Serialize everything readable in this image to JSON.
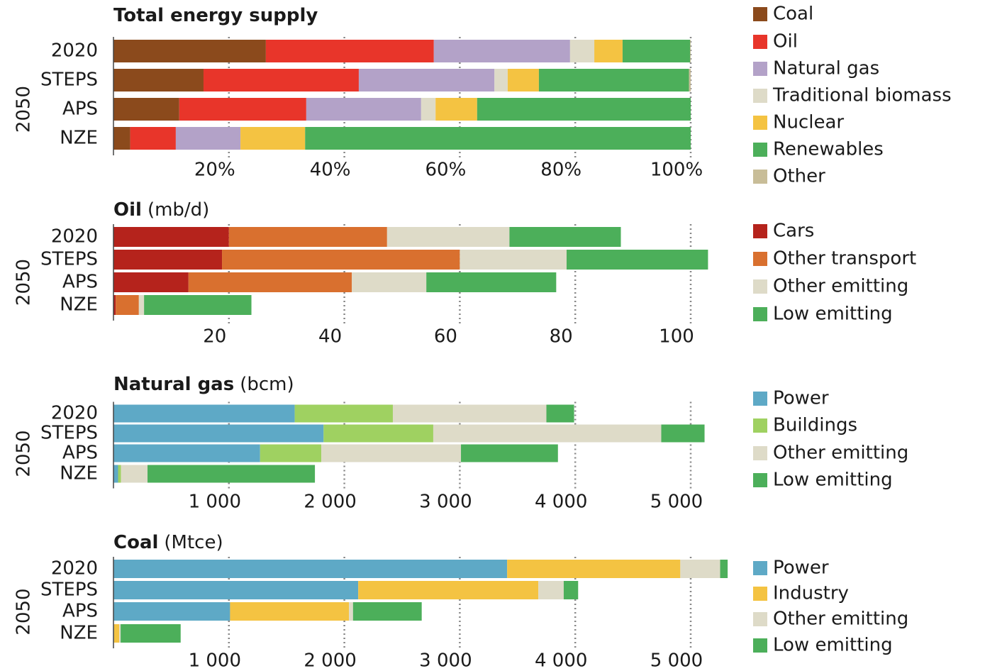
{
  "chart_data": [
    {
      "type": "stacked-barh",
      "title": "Total energy supply",
      "categories": [
        "2020",
        "STEPS",
        "APS",
        "NZE"
      ],
      "group_label": "2050",
      "xlim": [
        0,
        100
      ],
      "xticks": [
        {
          "value": 20,
          "label": "20%"
        },
        {
          "value": 40,
          "label": "40%"
        },
        {
          "value": 60,
          "label": "60%"
        },
        {
          "value": 80,
          "label": "80%"
        },
        {
          "value": 100,
          "label": "100%"
        }
      ],
      "grid": true,
      "legend": "right",
      "series": [
        {
          "name": "Coal",
          "color": "#8b4a1c",
          "values": [
            26.4,
            15.6,
            11.4,
            2.9
          ]
        },
        {
          "name": "Oil",
          "color": "#e8352a",
          "values": [
            29.1,
            26.9,
            22.0,
            7.9
          ]
        },
        {
          "name": "Natural gas",
          "color": "#b3a2c8",
          "values": [
            23.6,
            23.5,
            19.9,
            11.2
          ]
        },
        {
          "name": "Traditional biomass",
          "color": "#dedbc8",
          "values": [
            4.2,
            2.3,
            2.5,
            0
          ]
        },
        {
          "name": "Nuclear",
          "color": "#f4c342",
          "values": [
            4.9,
            5.4,
            7.2,
            11.2
          ]
        },
        {
          "name": "Renewables",
          "color": "#4caf5a",
          "values": [
            11.7,
            26.0,
            37.0,
            66.8
          ]
        },
        {
          "name": "Other",
          "color": "#c8bd98",
          "values": [
            0.1,
            0.3,
            0,
            0
          ]
        }
      ]
    },
    {
      "type": "stacked-barh",
      "title": "Oil",
      "unit": "(mb/d)",
      "categories": [
        "2020",
        "STEPS",
        "APS",
        "NZE"
      ],
      "group_label": "2050",
      "xlim": [
        0,
        105
      ],
      "xticks": [
        20,
        40,
        60,
        80,
        100
      ],
      "grid": true,
      "legend": "right",
      "series": [
        {
          "name": "Cars",
          "color": "#b5231c",
          "values": [
            20.0,
            18.8,
            13.0,
            0.4
          ]
        },
        {
          "name": "Other transport",
          "color": "#d9702f",
          "values": [
            27.4,
            41.2,
            28.3,
            4.0
          ]
        },
        {
          "name": "Other emitting",
          "color": "#dedbc8",
          "values": [
            21.2,
            18.5,
            12.9,
            0.9
          ]
        },
        {
          "name": "Low emitting",
          "color": "#4caf5a",
          "values": [
            19.3,
            24.5,
            22.5,
            18.6
          ]
        }
      ]
    },
    {
      "type": "stacked-barh",
      "title": "Natural gas",
      "unit": "(bcm)",
      "categories": [
        "2020",
        "STEPS",
        "APS",
        "NZE"
      ],
      "group_label": "2050",
      "xlim": [
        0,
        5250
      ],
      "xticks": [
        {
          "value": 1000,
          "label": "1 000"
        },
        {
          "value": 2000,
          "label": "2 000"
        },
        {
          "value": 3000,
          "label": "3 000"
        },
        {
          "value": 4000,
          "label": "4 000"
        },
        {
          "value": 5000,
          "label": "5 000"
        }
      ],
      "grid": true,
      "legend": "right",
      "series": [
        {
          "name": "Power",
          "color": "#5ea9c6",
          "values": [
            1570,
            1820,
            1270,
            40
          ]
        },
        {
          "name": "Buildings",
          "color": "#9fd161",
          "values": [
            850,
            950,
            530,
            25
          ]
        },
        {
          "name": "Other emitting",
          "color": "#dedbc8",
          "values": [
            1330,
            1975,
            1210,
            230
          ]
        },
        {
          "name": "Low emitting",
          "color": "#4caf5a",
          "values": [
            240,
            375,
            840,
            1450
          ]
        }
      ]
    },
    {
      "type": "stacked-barh",
      "title": "Coal",
      "unit": "(Mtce)",
      "categories": [
        "2020",
        "STEPS",
        "APS",
        "NZE"
      ],
      "group_label": "2050",
      "xlim": [
        0,
        5250
      ],
      "xticks": [
        {
          "value": 1000,
          "label": "1 000"
        },
        {
          "value": 2000,
          "label": "2 000"
        },
        {
          "value": 3000,
          "label": "3 000"
        },
        {
          "value": 4000,
          "label": "4 000"
        },
        {
          "value": 5000,
          "label": "5 000"
        }
      ],
      "grid": true,
      "legend": "right",
      "series": [
        {
          "name": "Power",
          "color": "#5ea9c6",
          "values": [
            3410,
            2120,
            1010,
            5
          ]
        },
        {
          "name": "Industry",
          "color": "#f4c342",
          "values": [
            1500,
            1560,
            1030,
            45
          ]
        },
        {
          "name": "Other emitting",
          "color": "#dedbc8",
          "values": [
            345,
            220,
            35,
            12
          ]
        },
        {
          "name": "Low emitting",
          "color": "#4caf5a",
          "values": [
            65,
            125,
            595,
            520
          ]
        }
      ]
    }
  ]
}
